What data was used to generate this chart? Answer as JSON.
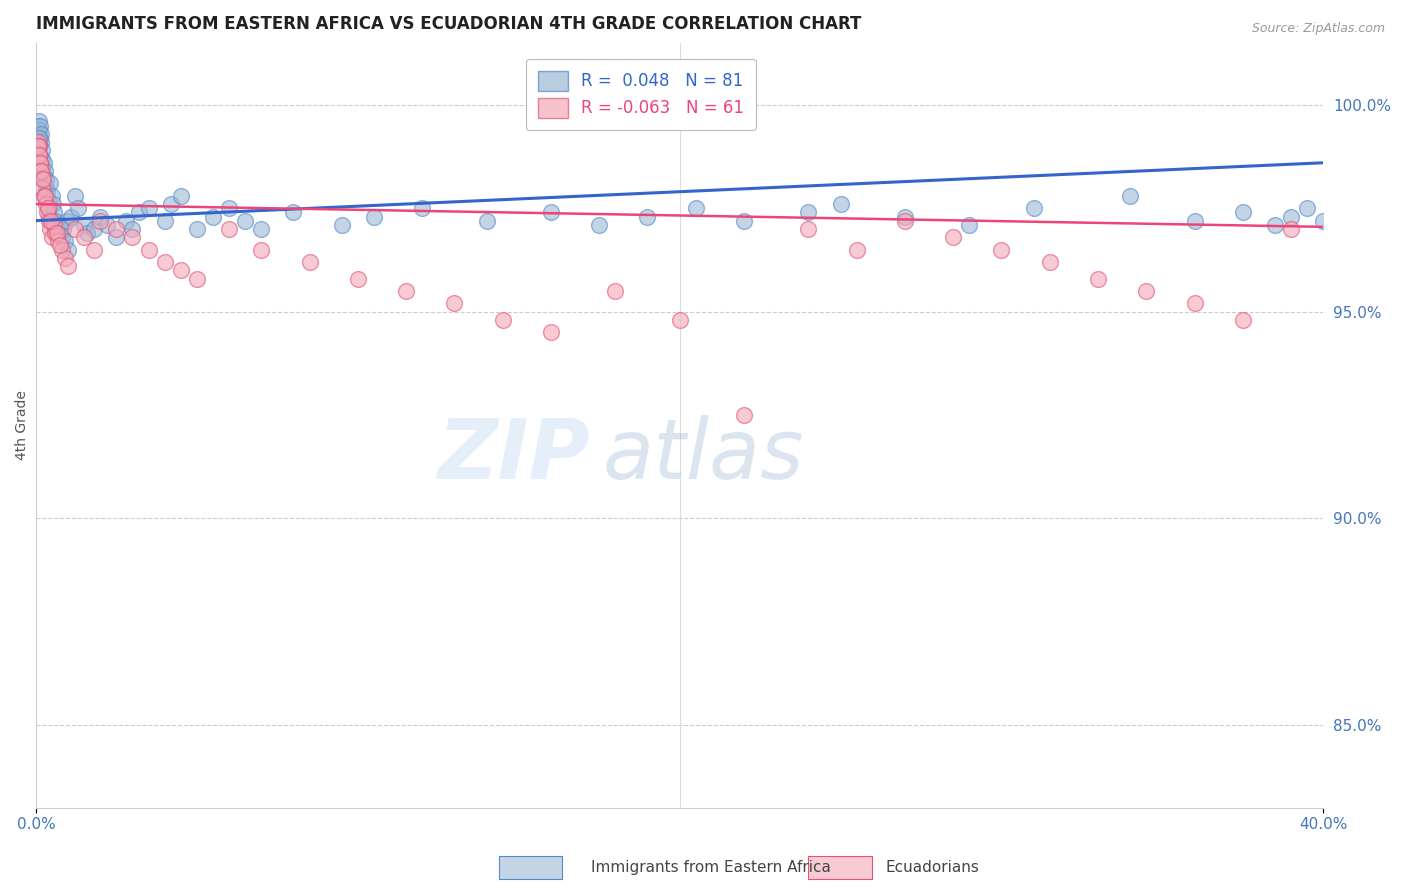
{
  "title": "IMMIGRANTS FROM EASTERN AFRICA VS ECUADORIAN 4TH GRADE CORRELATION CHART",
  "source": "Source: ZipAtlas.com",
  "ylabel": "4th Grade",
  "ylabel_right_ticks": [
    100.0,
    95.0,
    90.0,
    85.0
  ],
  "xlim": [
    0.0,
    40.0
  ],
  "ylim": [
    83.0,
    101.5
  ],
  "blue_R": 0.048,
  "blue_N": 81,
  "pink_R": -0.063,
  "pink_N": 61,
  "blue_color": "#9BB8D4",
  "pink_color": "#F4A8B8",
  "blue_edge_color": "#5588CC",
  "pink_edge_color": "#E05575",
  "blue_line_color": "#3366CC",
  "pink_line_color": "#EE4477",
  "legend_label_blue": "Immigrants from Eastern Africa",
  "legend_label_pink": "Ecuadorians",
  "watermark_zip": "ZIP",
  "watermark_atlas": "atlas",
  "background_color": "#FFFFFF",
  "blue_trend_y0": 97.2,
  "blue_trend_y1": 98.6,
  "pink_trend_y0": 97.6,
  "pink_trend_y1": 97.05,
  "blue_x": [
    0.05,
    0.07,
    0.08,
    0.09,
    0.1,
    0.1,
    0.12,
    0.13,
    0.14,
    0.15,
    0.16,
    0.18,
    0.19,
    0.2,
    0.22,
    0.25,
    0.28,
    0.3,
    0.32,
    0.35,
    0.38,
    0.4,
    0.42,
    0.45,
    0.5,
    0.52,
    0.55,
    0.6,
    0.65,
    0.7,
    0.75,
    0.8,
    0.85,
    0.9,
    0.95,
    1.0,
    1.1,
    1.2,
    1.3,
    1.5,
    1.6,
    1.8,
    2.0,
    2.2,
    2.5,
    2.8,
    3.0,
    3.2,
    3.5,
    4.0,
    4.2,
    4.5,
    5.0,
    5.5,
    6.0,
    6.5,
    7.0,
    8.0,
    9.5,
    10.5,
    12.0,
    14.0,
    16.0,
    17.5,
    19.0,
    20.5,
    22.0,
    24.0,
    25.0,
    27.0,
    29.0,
    31.0,
    34.0,
    36.0,
    37.5,
    38.5,
    39.0,
    39.5,
    40.0,
    0.06,
    0.11
  ],
  "blue_y": [
    99.5,
    99.3,
    99.1,
    99.6,
    99.4,
    99.0,
    99.2,
    99.5,
    98.8,
    99.3,
    99.1,
    98.7,
    98.9,
    98.5,
    98.3,
    98.6,
    98.4,
    98.2,
    98.0,
    97.9,
    97.7,
    97.5,
    97.3,
    98.1,
    97.8,
    97.6,
    97.4,
    97.2,
    97.0,
    96.9,
    97.1,
    96.8,
    97.0,
    96.7,
    97.2,
    96.5,
    97.3,
    97.8,
    97.5,
    97.1,
    96.9,
    97.0,
    97.3,
    97.1,
    96.8,
    97.2,
    97.0,
    97.4,
    97.5,
    97.2,
    97.6,
    97.8,
    97.0,
    97.3,
    97.5,
    97.2,
    97.0,
    97.4,
    97.1,
    97.3,
    97.5,
    97.2,
    97.4,
    97.1,
    97.3,
    97.5,
    97.2,
    97.4,
    97.6,
    97.3,
    97.1,
    97.5,
    97.8,
    97.2,
    97.4,
    97.1,
    97.3,
    97.5,
    97.2,
    99.0,
    99.2
  ],
  "pink_x": [
    0.05,
    0.08,
    0.1,
    0.12,
    0.15,
    0.18,
    0.2,
    0.25,
    0.3,
    0.35,
    0.4,
    0.45,
    0.5,
    0.55,
    0.6,
    0.7,
    0.8,
    0.9,
    1.0,
    1.2,
    1.5,
    1.8,
    2.0,
    2.5,
    3.0,
    3.5,
    4.0,
    4.5,
    5.0,
    6.0,
    7.0,
    8.5,
    10.0,
    11.5,
    13.0,
    14.5,
    16.0,
    18.0,
    20.0,
    22.0,
    24.0,
    25.5,
    27.0,
    28.5,
    30.0,
    31.5,
    33.0,
    34.5,
    36.0,
    37.5,
    39.0,
    0.06,
    0.09,
    0.13,
    0.16,
    0.22,
    0.28,
    0.38,
    0.48,
    0.65,
    0.75
  ],
  "pink_y": [
    99.1,
    99.0,
    98.8,
    98.6,
    98.4,
    98.2,
    98.0,
    97.8,
    97.6,
    97.4,
    97.2,
    97.0,
    96.8,
    97.1,
    96.9,
    96.7,
    96.5,
    96.3,
    96.1,
    97.0,
    96.8,
    96.5,
    97.2,
    97.0,
    96.8,
    96.5,
    96.2,
    96.0,
    95.8,
    97.0,
    96.5,
    96.2,
    95.8,
    95.5,
    95.2,
    94.8,
    94.5,
    95.5,
    94.8,
    92.5,
    97.0,
    96.5,
    97.2,
    96.8,
    96.5,
    96.2,
    95.8,
    95.5,
    95.2,
    94.8,
    97.0,
    99.0,
    98.8,
    98.6,
    98.4,
    98.2,
    97.8,
    97.5,
    97.2,
    96.9,
    96.6
  ]
}
